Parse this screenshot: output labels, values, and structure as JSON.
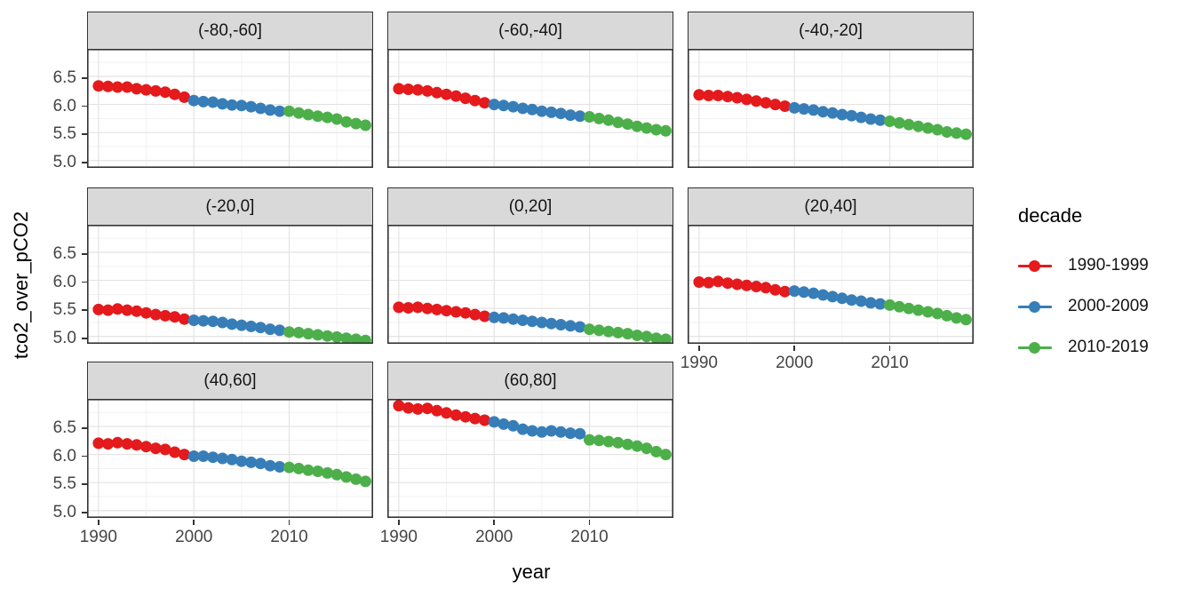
{
  "figure": {
    "y_axis_title": "tco2_over_pCO2",
    "x_axis_title": "year",
    "legend": {
      "title": "decade",
      "items": [
        {
          "label": "1990-1999",
          "color": "#E41A1C",
          "years": [
            1990,
            1999
          ]
        },
        {
          "label": "2000-2009",
          "color": "#377EB8",
          "years": [
            2000,
            2009
          ]
        },
        {
          "label": "2010-2019",
          "color": "#4DAF4A",
          "years": [
            2010,
            2019
          ]
        }
      ]
    },
    "strip_bg": "#D9D9D9",
    "strip_border": "#333333",
    "panel_border": "#333333",
    "axis_text_color": "#454545"
  },
  "chart_data": {
    "type": "scatter",
    "title": "",
    "xlabel": "year",
    "ylabel": "tco2_over_pCO2",
    "legend_position": "right",
    "grid": {
      "major": "#E3E3E3",
      "minor": "#F1F1F1",
      "on": true
    },
    "x": [
      1990,
      1991,
      1992,
      1993,
      1994,
      1995,
      1996,
      1997,
      1998,
      1999,
      2000,
      2001,
      2002,
      2003,
      2004,
      2005,
      2006,
      2007,
      2008,
      2009,
      2010,
      2011,
      2012,
      2013,
      2014,
      2015,
      2016,
      2017,
      2018
    ],
    "x_ticks": {
      "values": [
        1990,
        2000,
        2010
      ],
      "labels": [
        "1990",
        "2000",
        "2010"
      ],
      "minor": [
        1995,
        2005,
        2015
      ]
    },
    "y_ticks": {
      "values": [
        5.0,
        5.5,
        6.0,
        6.5
      ],
      "labels": [
        "5.0",
        "5.5",
        "6.0",
        "6.5"
      ],
      "minor": [
        5.25,
        5.75,
        6.25,
        6.75
      ]
    },
    "xlim": [
      1988.8,
      2018.8
    ],
    "ylim": [
      4.87,
      6.99
    ],
    "series_grouping": "decade",
    "facets": [
      {
        "label": "(-80,-60]",
        "axis_y": true,
        "axis_x": false,
        "values": [
          6.33,
          6.32,
          6.31,
          6.31,
          6.28,
          6.26,
          6.24,
          6.22,
          6.18,
          6.13,
          6.07,
          6.05,
          6.04,
          6.01,
          5.99,
          5.98,
          5.96,
          5.93,
          5.9,
          5.88,
          5.88,
          5.85,
          5.82,
          5.79,
          5.77,
          5.74,
          5.69,
          5.66,
          5.63
        ]
      },
      {
        "label": "(-60,-40]",
        "axis_y": false,
        "axis_x": false,
        "values": [
          6.28,
          6.27,
          6.26,
          6.24,
          6.21,
          6.18,
          6.15,
          6.11,
          6.07,
          6.03,
          6.0,
          5.98,
          5.96,
          5.93,
          5.91,
          5.88,
          5.86,
          5.84,
          5.81,
          5.79,
          5.78,
          5.75,
          5.72,
          5.68,
          5.65,
          5.61,
          5.58,
          5.55,
          5.53
        ]
      },
      {
        "label": "(-40,-20]",
        "axis_y": false,
        "axis_x": false,
        "values": [
          6.17,
          6.16,
          6.16,
          6.14,
          6.12,
          6.09,
          6.06,
          6.03,
          6.0,
          5.97,
          5.94,
          5.92,
          5.9,
          5.87,
          5.85,
          5.82,
          5.8,
          5.77,
          5.74,
          5.72,
          5.7,
          5.67,
          5.64,
          5.61,
          5.58,
          5.55,
          5.51,
          5.49,
          5.47
        ]
      },
      {
        "label": "(-20,0]",
        "axis_y": true,
        "axis_x": false,
        "values": [
          5.48,
          5.47,
          5.49,
          5.47,
          5.45,
          5.42,
          5.39,
          5.37,
          5.35,
          5.31,
          5.29,
          5.28,
          5.27,
          5.25,
          5.22,
          5.2,
          5.18,
          5.16,
          5.13,
          5.11,
          5.08,
          5.07,
          5.05,
          5.03,
          5.01,
          4.99,
          4.97,
          4.95,
          4.93
        ]
      },
      {
        "label": "(0,20]",
        "axis_y": false,
        "axis_x": false,
        "values": [
          5.52,
          5.51,
          5.52,
          5.5,
          5.48,
          5.46,
          5.44,
          5.42,
          5.39,
          5.36,
          5.34,
          5.33,
          5.31,
          5.29,
          5.27,
          5.25,
          5.23,
          5.21,
          5.19,
          5.17,
          5.13,
          5.11,
          5.09,
          5.07,
          5.05,
          5.02,
          5.0,
          4.97,
          4.95
        ]
      },
      {
        "label": "(20,40]",
        "axis_y": false,
        "axis_x": true,
        "values": [
          5.97,
          5.96,
          5.98,
          5.95,
          5.93,
          5.91,
          5.89,
          5.87,
          5.83,
          5.8,
          5.81,
          5.79,
          5.77,
          5.74,
          5.71,
          5.68,
          5.65,
          5.63,
          5.6,
          5.58,
          5.56,
          5.53,
          5.5,
          5.47,
          5.44,
          5.41,
          5.37,
          5.33,
          5.3
        ]
      },
      {
        "label": "(40,60]",
        "axis_y": true,
        "axis_x": true,
        "values": [
          6.2,
          6.19,
          6.21,
          6.19,
          6.17,
          6.14,
          6.11,
          6.09,
          6.04,
          6.0,
          5.97,
          5.97,
          5.95,
          5.93,
          5.91,
          5.88,
          5.86,
          5.84,
          5.8,
          5.78,
          5.77,
          5.75,
          5.72,
          5.7,
          5.67,
          5.64,
          5.6,
          5.56,
          5.52
        ]
      },
      {
        "label": "(60,80]",
        "axis_y": false,
        "axis_x": true,
        "values": [
          6.87,
          6.83,
          6.81,
          6.82,
          6.78,
          6.74,
          6.7,
          6.67,
          6.64,
          6.61,
          6.58,
          6.54,
          6.51,
          6.45,
          6.42,
          6.4,
          6.42,
          6.4,
          6.38,
          6.37,
          6.26,
          6.25,
          6.23,
          6.21,
          6.18,
          6.15,
          6.11,
          6.05,
          6.0
        ]
      }
    ]
  }
}
